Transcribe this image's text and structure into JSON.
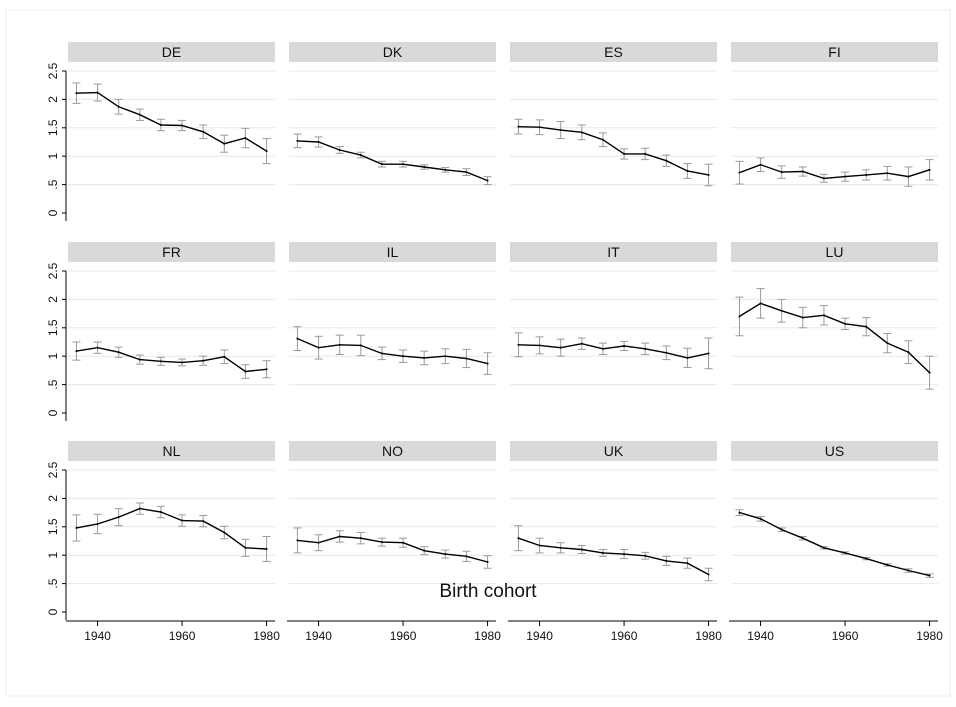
{
  "chart_data": {
    "type": "line",
    "layout": "small-multiples grid, 3 rows x 4 columns, shared axes",
    "xlabel": "Birth cohort",
    "ylabel": "",
    "xlim": [
      1933,
      1982
    ],
    "ylim": [
      0,
      2.5
    ],
    "x_ticks": [
      1940,
      1960,
      1980
    ],
    "y_ticks": [
      0,
      0.5,
      1,
      1.5,
      2,
      2.5
    ],
    "y_tick_labels": [
      "0",
      ".5",
      "1",
      "1.5",
      "2",
      "2.5"
    ],
    "grid": "horizontal",
    "error_bars": true,
    "x": [
      1935,
      1940,
      1945,
      1950,
      1955,
      1960,
      1965,
      1970,
      1975,
      1980
    ],
    "panels": [
      {
        "name": "DE",
        "values": [
          2.11,
          2.12,
          1.87,
          1.73,
          1.55,
          1.54,
          1.43,
          1.22,
          1.32,
          1.09
        ],
        "lower": [
          1.93,
          1.97,
          1.74,
          1.63,
          1.45,
          1.45,
          1.31,
          1.07,
          1.15,
          0.87
        ],
        "upper": [
          2.29,
          2.27,
          2.0,
          1.83,
          1.65,
          1.63,
          1.55,
          1.37,
          1.49,
          1.31
        ]
      },
      {
        "name": "DK",
        "values": [
          1.27,
          1.25,
          1.11,
          1.02,
          0.86,
          0.86,
          0.81,
          0.76,
          0.72,
          0.57
        ],
        "lower": [
          1.15,
          1.16,
          1.05,
          0.97,
          0.81,
          0.81,
          0.77,
          0.72,
          0.66,
          0.5
        ],
        "upper": [
          1.39,
          1.34,
          1.17,
          1.07,
          0.91,
          0.91,
          0.85,
          0.8,
          0.78,
          0.64
        ]
      },
      {
        "name": "ES",
        "values": [
          1.52,
          1.51,
          1.46,
          1.42,
          1.29,
          1.04,
          1.04,
          0.92,
          0.74,
          0.67
        ],
        "lower": [
          1.39,
          1.38,
          1.31,
          1.29,
          1.17,
          0.95,
          0.94,
          0.82,
          0.61,
          0.48
        ],
        "upper": [
          1.65,
          1.64,
          1.61,
          1.55,
          1.41,
          1.13,
          1.14,
          1.02,
          0.87,
          0.86
        ]
      },
      {
        "name": "FI",
        "values": [
          0.71,
          0.85,
          0.72,
          0.73,
          0.61,
          0.64,
          0.67,
          0.7,
          0.64,
          0.76
        ],
        "lower": [
          0.51,
          0.73,
          0.61,
          0.65,
          0.54,
          0.56,
          0.58,
          0.58,
          0.47,
          0.58
        ],
        "upper": [
          0.91,
          0.97,
          0.83,
          0.81,
          0.68,
          0.72,
          0.76,
          0.82,
          0.81,
          0.94
        ]
      },
      {
        "name": "FR",
        "values": [
          1.09,
          1.15,
          1.07,
          0.94,
          0.91,
          0.89,
          0.92,
          0.99,
          0.73,
          0.77
        ],
        "lower": [
          0.93,
          1.05,
          0.98,
          0.86,
          0.84,
          0.83,
          0.84,
          0.87,
          0.61,
          0.62
        ],
        "upper": [
          1.25,
          1.25,
          1.16,
          1.02,
          0.98,
          0.95,
          1.0,
          1.11,
          0.85,
          0.92
        ]
      },
      {
        "name": "IL",
        "values": [
          1.31,
          1.15,
          1.2,
          1.19,
          1.05,
          1.0,
          0.97,
          1.0,
          0.96,
          0.87
        ],
        "lower": [
          1.1,
          0.95,
          1.03,
          1.01,
          0.94,
          0.89,
          0.85,
          0.87,
          0.8,
          0.68
        ],
        "upper": [
          1.52,
          1.35,
          1.37,
          1.37,
          1.16,
          1.11,
          1.09,
          1.13,
          1.12,
          1.06
        ]
      },
      {
        "name": "IT",
        "values": [
          1.2,
          1.19,
          1.15,
          1.22,
          1.13,
          1.18,
          1.13,
          1.06,
          0.97,
          1.05
        ],
        "lower": [
          0.99,
          1.04,
          1.0,
          1.12,
          1.03,
          1.1,
          1.03,
          0.94,
          0.8,
          0.78
        ],
        "upper": [
          1.41,
          1.34,
          1.3,
          1.32,
          1.23,
          1.26,
          1.23,
          1.18,
          1.14,
          1.32
        ]
      },
      {
        "name": "LU",
        "values": [
          1.7,
          1.93,
          1.8,
          1.68,
          1.72,
          1.57,
          1.52,
          1.23,
          1.07,
          0.71
        ],
        "lower": [
          1.36,
          1.67,
          1.6,
          1.5,
          1.55,
          1.47,
          1.36,
          1.06,
          0.87,
          0.42
        ],
        "upper": [
          2.04,
          2.19,
          2.0,
          1.86,
          1.89,
          1.67,
          1.68,
          1.4,
          1.27,
          1.0
        ]
      },
      {
        "name": "NL",
        "values": [
          1.48,
          1.55,
          1.67,
          1.82,
          1.76,
          1.61,
          1.6,
          1.4,
          1.13,
          1.11
        ],
        "lower": [
          1.25,
          1.38,
          1.52,
          1.72,
          1.66,
          1.51,
          1.5,
          1.29,
          0.98,
          0.89
        ],
        "upper": [
          1.71,
          1.72,
          1.82,
          1.92,
          1.86,
          1.71,
          1.7,
          1.51,
          1.28,
          1.33
        ]
      },
      {
        "name": "NO",
        "values": [
          1.26,
          1.22,
          1.33,
          1.3,
          1.23,
          1.22,
          1.08,
          1.02,
          0.98,
          0.88
        ],
        "lower": [
          1.04,
          1.08,
          1.23,
          1.2,
          1.16,
          1.14,
          1.01,
          0.95,
          0.89,
          0.77
        ],
        "upper": [
          1.48,
          1.36,
          1.43,
          1.4,
          1.3,
          1.3,
          1.15,
          1.09,
          1.07,
          0.99
        ]
      },
      {
        "name": "UK",
        "values": [
          1.3,
          1.17,
          1.13,
          1.1,
          1.04,
          1.02,
          0.99,
          0.9,
          0.86,
          0.66
        ],
        "lower": [
          1.08,
          1.04,
          1.04,
          1.03,
          0.98,
          0.94,
          0.93,
          0.82,
          0.77,
          0.55
        ],
        "upper": [
          1.52,
          1.3,
          1.22,
          1.17,
          1.1,
          1.1,
          1.05,
          0.98,
          0.95,
          0.77
        ]
      },
      {
        "name": "US",
        "values": [
          1.75,
          1.64,
          1.45,
          1.3,
          1.13,
          1.04,
          0.94,
          0.83,
          0.73,
          0.64
        ],
        "lower": [
          1.7,
          1.6,
          1.42,
          1.27,
          1.11,
          1.02,
          0.92,
          0.81,
          0.7,
          0.61
        ],
        "upper": [
          1.8,
          1.68,
          1.48,
          1.33,
          1.15,
          1.06,
          0.96,
          0.85,
          0.76,
          0.67
        ]
      }
    ],
    "colors": {
      "line": "#000000",
      "error_bar": "#9a9a9a",
      "strip_bg": "#d9d9d9",
      "grid": "#e8e8e8",
      "axis": "#000000",
      "frame_border": "#eeeeee"
    }
  }
}
